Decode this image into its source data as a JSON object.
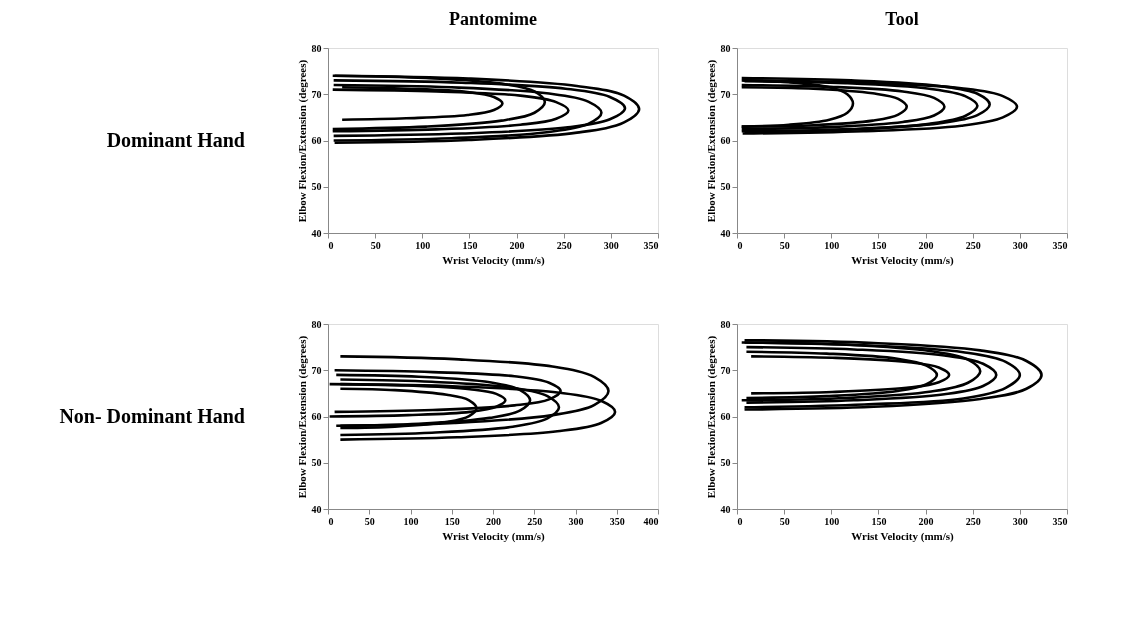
{
  "chart_data": [
    {
      "type": "line",
      "title": "Pantomime",
      "annotations": [
        "Dominant Hand"
      ],
      "xlabel": "Wrist Velocity (mm/s)",
      "ylabel": "Elbow Flexion/Extension (degrees)",
      "xlim": [
        0,
        350
      ],
      "xticks": [
        0,
        50,
        100,
        150,
        200,
        250,
        300,
        350
      ],
      "ylim": [
        40,
        80
      ],
      "yticks": [
        40,
        50,
        60,
        70,
        80
      ],
      "grid": false,
      "legend": false,
      "series": [
        {
          "color": "#000000",
          "x": [
            7,
            149,
            264,
            314,
            330,
            314,
            264,
            149,
            7
          ],
          "values": [
            74,
            73.4,
            71.8,
            69.7,
            66.8,
            63.9,
            61.7,
            60.1,
            59.5
          ]
        },
        {
          "color": "#000000",
          "x": [
            6,
            142,
            252,
            299,
            315,
            299,
            252,
            142,
            6
          ],
          "values": [
            73,
            72.5,
            71.2,
            69.4,
            67,
            64.6,
            62.8,
            61.5,
            61
          ]
        },
        {
          "color": "#000000",
          "x": [
            6,
            131,
            232,
            276,
            290,
            276,
            232,
            131,
            6
          ],
          "values": [
            72,
            71.5,
            70.2,
            68.4,
            66,
            63.6,
            61.8,
            60.5,
            60
          ]
        },
        {
          "color": "#000000",
          "x": [
            5,
            115,
            204,
            242,
            255,
            242,
            204,
            115,
            5
          ],
          "values": [
            71,
            70.6,
            69.7,
            68.3,
            66.5,
            64.7,
            63.4,
            62.4,
            62
          ]
        },
        {
          "color": "#000000",
          "x": [
            15,
            83,
            148,
            176,
            185,
            176,
            148,
            83,
            15
          ],
          "values": [
            71.5,
            71.2,
            70.5,
            69.4,
            68,
            66.6,
            65.5,
            64.8,
            64.5
          ]
        },
        {
          "color": "#000000",
          "x": [
            5,
            104,
            184,
            219,
            230,
            219,
            184,
            104,
            5
          ],
          "values": [
            74,
            73.5,
            72.3,
            70.6,
            68.3,
            66,
            64.3,
            63,
            62.5
          ]
        }
      ]
    },
    {
      "type": "line",
      "title": "Tool",
      "xlabel": "Wrist Velocity (mm/s)",
      "ylabel": "Elbow Flexion/Extension (degrees)",
      "xlim": [
        0,
        350
      ],
      "xticks": [
        0,
        50,
        100,
        150,
        200,
        250,
        300,
        350
      ],
      "ylim": [
        40,
        80
      ],
      "yticks": [
        40,
        50,
        60,
        70,
        80
      ],
      "grid": false,
      "legend": false,
      "series": [
        {
          "color": "#000000",
          "x": [
            6,
            134,
            238,
            282,
            297,
            282,
            238,
            134,
            6
          ],
          "values": [
            73,
            72.5,
            71.3,
            69.6,
            67.3,
            65,
            63.2,
            62,
            61.5
          ]
        },
        {
          "color": "#000000",
          "x": [
            5,
            121,
            214,
            255,
            268,
            255,
            214,
            121,
            5
          ],
          "values": [
            73.5,
            73,
            71.8,
            70.1,
            67.8,
            65.5,
            63.7,
            62.5,
            62
          ]
        },
        {
          "color": "#000000",
          "x": [
            5,
            99,
            176,
            209,
            220,
            209,
            176,
            99,
            5
          ],
          "values": [
            72,
            71.6,
            70.6,
            69.2,
            67.3,
            65.4,
            64,
            62.9,
            62.5
          ]
        },
        {
          "color": "#000000",
          "x": [
            5,
            81,
            144,
            171,
            180,
            171,
            144,
            81,
            5
          ],
          "values": [
            71.5,
            71.2,
            70.2,
            69,
            67.3,
            65.6,
            64.3,
            63.3,
            63
          ]
        },
        {
          "color": "#000000",
          "x": [
            5,
            55,
            98,
            117,
            123,
            117,
            98,
            55,
            5
          ],
          "values": [
            73,
            72.6,
            71.5,
            70,
            68,
            66,
            64.5,
            63.4,
            63
          ]
        },
        {
          "color": "#000000",
          "x": [
            8,
            115,
            204,
            242,
            255,
            242,
            204,
            115,
            8
          ],
          "values": [
            72.8,
            72.4,
            71.2,
            69.6,
            67.5,
            65.3,
            63.6,
            62.3,
            61.8
          ]
        }
      ]
    },
    {
      "type": "line",
      "annotations": [
        "Non- Dominant Hand"
      ],
      "xlabel": "Wrist Velocity (mm/s)",
      "ylabel": "Elbow Flexion/Extension (degrees)",
      "xlim": [
        0,
        400
      ],
      "xticks": [
        0,
        50,
        100,
        150,
        200,
        250,
        300,
        350,
        400
      ],
      "ylim": [
        40,
        80
      ],
      "yticks": [
        40,
        50,
        60,
        70,
        80
      ],
      "grid": false,
      "legend": false,
      "series": [
        {
          "color": "#000000",
          "x": [
            15,
            157,
            278,
            331,
            348,
            331,
            278,
            157,
            15
          ],
          "values": [
            67,
            66.5,
            65.2,
            63.4,
            61,
            58.6,
            56.8,
            55.5,
            55
          ]
        },
        {
          "color": "#000000",
          "x": [
            15,
            153,
            272,
            323,
            340,
            323,
            272,
            153,
            15
          ],
          "values": [
            73,
            72.4,
            70.8,
            68.5,
            65.5,
            62.5,
            60.3,
            58.6,
            58
          ]
        },
        {
          "color": "#000000",
          "x": [
            8,
            127,
            226,
            268,
            282,
            268,
            226,
            127,
            8
          ],
          "values": [
            70,
            69.6,
            68.7,
            67.3,
            65.5,
            63.7,
            62.4,
            61.4,
            61
          ]
        },
        {
          "color": "#000000",
          "x": [
            15,
            126,
            224,
            266,
            280,
            266,
            224,
            126,
            15
          ],
          "values": [
            68,
            67.5,
            66.2,
            64.4,
            62,
            59.6,
            57.8,
            56.5,
            56
          ]
        },
        {
          "color": "#000000",
          "x": [
            10,
            110,
            196,
            233,
            245,
            233,
            196,
            110,
            10
          ],
          "values": [
            69,
            68.6,
            67.4,
            65.7,
            63.5,
            61.3,
            59.7,
            58.4,
            58
          ]
        },
        {
          "color": "#000000",
          "x": [
            2,
            97,
            172,
            204,
            215,
            204,
            172,
            97,
            2
          ],
          "values": [
            67,
            66.7,
            65.9,
            64.9,
            63.5,
            62.1,
            61,
            60.3,
            60
          ]
        },
        {
          "color": "#000000",
          "x": [
            15,
            81,
            144,
            171,
            180,
            171,
            144,
            81,
            15
          ],
          "values": [
            66,
            65.7,
            64.7,
            63.5,
            61.8,
            60.1,
            58.8,
            57.8,
            57.5
          ]
        }
      ]
    },
    {
      "type": "line",
      "xlabel": "Wrist Velocity (mm/s)",
      "ylabel": "Elbow Flexion/Extension (degrees)",
      "xlim": [
        0,
        350
      ],
      "xticks": [
        0,
        50,
        100,
        150,
        200,
        250,
        300,
        350
      ],
      "ylim": [
        40,
        80
      ],
      "yticks": [
        40,
        50,
        60,
        70,
        80
      ],
      "grid": false,
      "legend": false,
      "series": [
        {
          "color": "#000000",
          "x": [
            8,
            145,
            258,
            307,
            323,
            307,
            258,
            145,
            8
          ],
          "values": [
            76.5,
            75.9,
            74.3,
            72,
            69,
            66,
            63.8,
            62.1,
            61.5
          ]
        },
        {
          "color": "#000000",
          "x": [
            8,
            135,
            240,
            285,
            300,
            285,
            240,
            135,
            8
          ],
          "values": [
            76,
            75.4,
            73.9,
            71.8,
            69,
            66.2,
            63.9,
            62.6,
            62
          ]
        },
        {
          "color": "#000000",
          "x": [
            10,
            124,
            220,
            261,
            275,
            261,
            220,
            124,
            10
          ],
          "values": [
            75,
            74.5,
            73.2,
            71.4,
            69,
            66.6,
            64.8,
            63.5,
            63
          ]
        },
        {
          "color": "#000000",
          "x": [
            5,
            116,
            206,
            245,
            258,
            245,
            206,
            116,
            5
          ],
          "values": [
            76,
            75.5,
            74.1,
            72.3,
            69.8,
            67.3,
            65.4,
            64,
            63.5
          ]
        },
        {
          "color": "#000000",
          "x": [
            15,
            101,
            180,
            214,
            225,
            214,
            180,
            101,
            15
          ],
          "values": [
            73,
            72.7,
            71.8,
            70.6,
            69,
            67.4,
            66.2,
            65.3,
            65
          ]
        },
        {
          "color": "#000000",
          "x": [
            10,
            95,
            170,
            201,
            212,
            201,
            170,
            95,
            10
          ],
          "values": [
            74,
            73.6,
            72.5,
            71,
            69,
            67,
            65.5,
            64.4,
            64
          ]
        }
      ]
    }
  ]
}
